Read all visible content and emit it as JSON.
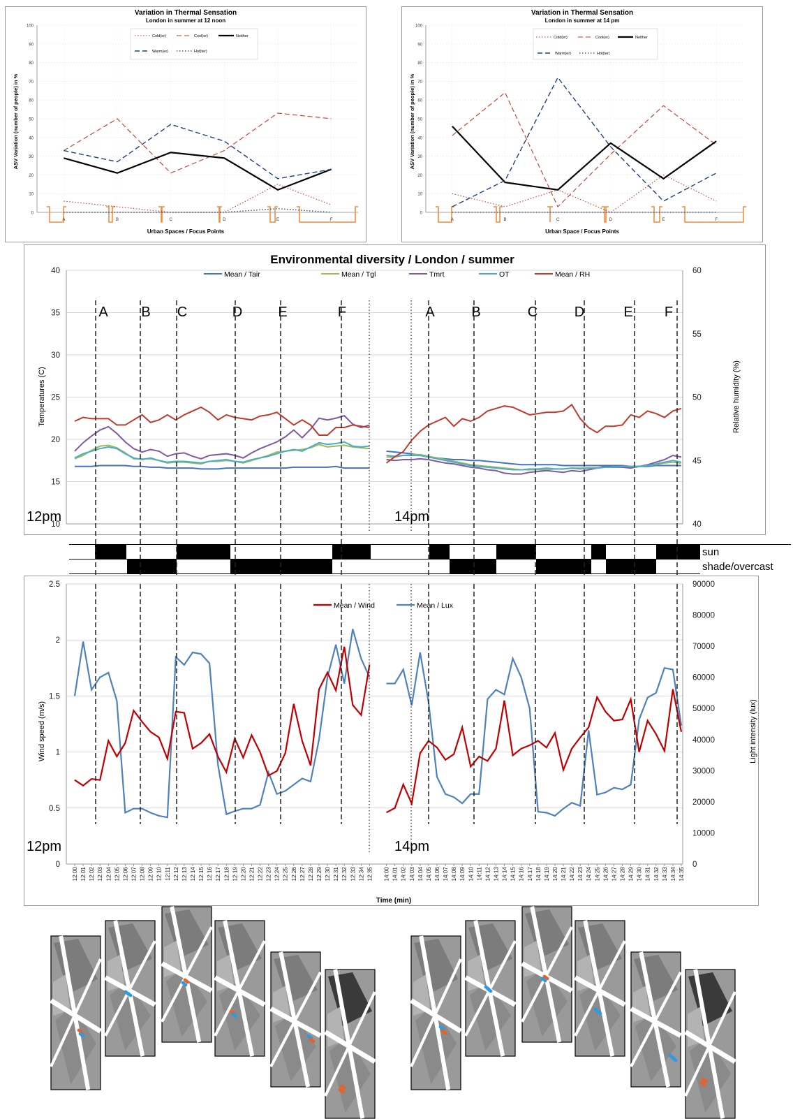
{
  "asv": [
    {
      "title": "Variation in Thermal Sensation",
      "subtitle": "London in summer at 12 noon",
      "xlabel": "Urban Spaces / Focus Points",
      "ylabel": "ASV Variation (number of people) in %",
      "legend": [
        "Cold(er)",
        "Cool(er)",
        "Neither",
        "Warm(er)",
        "Hot(ter)"
      ]
    },
    {
      "title": "Variation in Thermal Sensation",
      "subtitle": "London in summer at 14 pm",
      "xlabel": "Urban Space / Focus Points",
      "ylabel": "ASV Variation (number of people) in %",
      "legend": [
        "Cold(er)",
        "Cool(er)",
        "Neither",
        "Warm(er)",
        "Hot(ter)"
      ]
    }
  ],
  "env_title": "Environmental diversity / London / summer",
  "temp_ylabel": "Temperatures (C)",
  "rh_ylabel": "Relative humidity (%)",
  "temp_legend": [
    "Mean / Tair",
    "Mean / Tgl",
    "Tmrt",
    "OT",
    "Mean / RH"
  ],
  "wind_ylabel": "Wind speed (m/s)",
  "lux_ylabel": "Light intensity (lux)",
  "wind_legend": [
    "Mean / Wind",
    "Mean / Lux"
  ],
  "time_label": "Time (min)",
  "time_12": "12pm",
  "time_14": "14pm",
  "sun_label": "sun",
  "shade_label": "shade/overcast",
  "colors": {
    "tair": "#4472c4",
    "tgl": "#9bbb59",
    "tmrt": "#7f5aa0",
    "ot": "#4bacc6",
    "rh": "#c0392b",
    "wind": "#c00000",
    "lux": "#4f81bd",
    "asv_red": "#c0392b",
    "asv_blue": "#1f3f7a",
    "bracket": "#f28c3a"
  },
  "chart_data": [
    {
      "type": "line",
      "title": "Variation in Thermal Sensation",
      "subtitle": "London in summer at 12 noon",
      "xlabel": "Urban Spaces / Focus Points",
      "ylabel": "ASV Variation (number of people) in %",
      "categories": [
        "A",
        "B",
        "C",
        "D",
        "E",
        "F"
      ],
      "ylim": [
        0,
        100
      ],
      "yticks": [
        0,
        10,
        20,
        30,
        40,
        50,
        60,
        70,
        80,
        90,
        100
      ],
      "series": [
        {
          "name": "Cold(er)",
          "values": [
            6,
            3,
            0,
            0,
            15,
            4
          ]
        },
        {
          "name": "Cool(er)",
          "values": [
            33,
            50,
            21,
            33,
            53,
            50
          ]
        },
        {
          "name": "Neither",
          "values": [
            29,
            21,
            32,
            29,
            12,
            23
          ]
        },
        {
          "name": "Warm(er)",
          "values": [
            33,
            27,
            47,
            38,
            18,
            23
          ]
        },
        {
          "name": "Hot(ter)",
          "values": [
            0,
            0,
            0,
            0,
            2,
            0
          ]
        }
      ]
    },
    {
      "type": "line",
      "title": "Variation in Thermal Sensation",
      "subtitle": "London in summer at 14 pm",
      "xlabel": "Urban Space / Focus Points",
      "ylabel": "ASV Variation (number of people) in %",
      "categories": [
        "A",
        "B",
        "C",
        "D",
        "E",
        "F"
      ],
      "ylim": [
        0,
        100
      ],
      "yticks": [
        0,
        10,
        20,
        30,
        40,
        50,
        60,
        70,
        80,
        90,
        100
      ],
      "series": [
        {
          "name": "Cold(er)",
          "values": [
            10,
            3,
            12,
            0,
            20,
            6
          ]
        },
        {
          "name": "Cool(er)",
          "values": [
            41,
            64,
            3,
            31,
            57,
            36
          ]
        },
        {
          "name": "Neither",
          "values": [
            46,
            16,
            12,
            37,
            18,
            38
          ]
        },
        {
          "name": "Warm(er)",
          "values": [
            3,
            17,
            72,
            35,
            6,
            21
          ]
        },
        {
          "name": "Hot(ter)",
          "values": [
            0,
            0,
            0,
            0,
            0,
            0
          ]
        }
      ]
    },
    {
      "type": "line",
      "title": "Environmental diversity / London / summer",
      "ylabel": "Temperatures (C)",
      "y2label": "Relative humidity (%)",
      "ylim": [
        10,
        40
      ],
      "yticks": [
        10,
        15,
        20,
        25,
        30,
        35,
        40
      ],
      "y2lim": [
        40,
        60
      ],
      "y2ticks": [
        40,
        45,
        50,
        55,
        60
      ],
      "zone_labels": [
        "A",
        "B",
        "C",
        "D",
        "E",
        "F"
      ],
      "series": [
        {
          "name": "Mean / Tair",
          "block12": [
            16.8,
            16.8,
            16.8,
            16.9,
            16.9,
            16.9,
            16.9,
            16.8,
            16.8,
            16.7,
            16.7,
            16.6,
            16.6,
            16.6,
            16.6,
            16.5,
            16.5,
            16.5,
            16.6,
            16.6,
            16.6,
            16.6,
            16.6,
            16.6,
            16.6,
            16.6,
            16.7,
            16.7,
            16.7,
            16.7,
            16.7,
            16.8,
            16.6,
            16.6,
            16.6,
            16.6
          ],
          "block14": [
            18.6,
            18.5,
            18.4,
            18.3,
            18.1,
            17.9,
            17.8,
            17.7,
            17.6,
            17.6,
            17.5,
            17.5,
            17.4,
            17.3,
            17.2,
            17.1,
            17,
            17,
            17,
            17,
            17,
            16.9,
            16.9,
            16.9,
            16.9,
            16.9,
            16.9,
            16.9,
            16.9,
            16.8,
            16.8,
            16.8,
            16.9,
            16.9,
            16.9,
            16.9
          ]
        },
        {
          "name": "Mean / Tgl",
          "block12": [
            17.7,
            18.1,
            18.7,
            19.2,
            19.3,
            19,
            18.4,
            17.7,
            17.7,
            17.7,
            17.5,
            17.2,
            17.3,
            17.3,
            17.2,
            17.1,
            17.4,
            17.4,
            17.5,
            17.4,
            17.2,
            17.5,
            17.8,
            18.1,
            18.5,
            18.6,
            18.7,
            18.8,
            19,
            19.4,
            19.1,
            19.2,
            19.3,
            19.1,
            19,
            18.9
          ],
          "block14": [
            17.9,
            17.9,
            18.1,
            18.2,
            18.2,
            18,
            17.8,
            17.6,
            17.4,
            17.2,
            17,
            16.9,
            16.8,
            16.7,
            16.6,
            16.5,
            16.4,
            16.4,
            16.4,
            16.4,
            16.5,
            16.5,
            16.6,
            16.6,
            16.6,
            16.6,
            16.7,
            16.7,
            16.8,
            16.8,
            16.8,
            16.9,
            17,
            17.2,
            17.3,
            17.2
          ]
        },
        {
          "name": "Tmrt",
          "block12": [
            18.6,
            19.6,
            20.4,
            21.1,
            21.5,
            20.7,
            19.7,
            18.9,
            18.5,
            18.8,
            18.6,
            18,
            18.3,
            18.4,
            18,
            17.7,
            18.1,
            18.2,
            18.3,
            18.1,
            17.8,
            18.4,
            18.9,
            19.3,
            19.7,
            20.3,
            21.1,
            20.2,
            21.2,
            22.5,
            22.3,
            22.5,
            22.8,
            21.8,
            21.4,
            21.7
          ],
          "block14": [
            17.6,
            17.5,
            17.6,
            17.6,
            17.7,
            17.6,
            17.4,
            17.2,
            17.1,
            16.9,
            16.7,
            16.6,
            16.4,
            16.3,
            16,
            15.9,
            15.9,
            16.1,
            16.2,
            16.3,
            16.2,
            16.1,
            16.3,
            16.2,
            16.4,
            16.6,
            16.8,
            16.7,
            16.7,
            16.6,
            16.8,
            17,
            17.3,
            17.6,
            18.1,
            17.9
          ]
        },
        {
          "name": "OT",
          "block12": [
            17.8,
            18.3,
            18.6,
            18.9,
            19.1,
            18.9,
            18.3,
            17.8,
            17.6,
            17.8,
            17.5,
            17.3,
            17.4,
            17.4,
            17.3,
            17.2,
            17.4,
            17.5,
            17.6,
            17.4,
            17.3,
            17.6,
            17.8,
            18,
            18.3,
            18.6,
            18.8,
            18.6,
            19.1,
            19.6,
            19.4,
            19.5,
            19.7,
            19.2,
            19.1,
            19.2
          ],
          "block14": [
            18.1,
            18,
            18.1,
            18.1,
            18.1,
            17.9,
            17.7,
            17.5,
            17.3,
            17.1,
            16.9,
            16.8,
            16.7,
            16.6,
            16.5,
            16.4,
            16.4,
            16.5,
            16.5,
            16.6,
            16.5,
            16.5,
            16.6,
            16.5,
            16.6,
            16.6,
            16.7,
            16.7,
            16.8,
            16.8,
            16.8,
            16.9,
            17.1,
            17.3,
            17.5,
            17.3
          ]
        },
        {
          "name": "Mean / RH",
          "block12": [
            48.1,
            48.4,
            48.3,
            48.3,
            48.3,
            47.8,
            47.8,
            48.2,
            48.6,
            48,
            48.2,
            48.6,
            48.2,
            48.6,
            48.9,
            49.2,
            48.8,
            48.2,
            48.6,
            48.4,
            48.3,
            48.2,
            48.5,
            48.6,
            48.8,
            48.3,
            47.8,
            48.2,
            47.8,
            47,
            47,
            47.6,
            47.6,
            47.8,
            47.7,
            47.6
          ],
          "block14": [
            44.8,
            45.3,
            45.7,
            46.6,
            47.3,
            47.8,
            48.1,
            48.4,
            47.7,
            48.3,
            48.1,
            48.4,
            48.9,
            49.1,
            49.3,
            49.2,
            48.9,
            48.6,
            48.7,
            48.8,
            48.8,
            48.9,
            49.4,
            48.3,
            47.6,
            47.2,
            47.7,
            47.7,
            47.8,
            48.6,
            48.4,
            48.9,
            48.7,
            48.4,
            48.9,
            49.1
          ]
        }
      ]
    },
    {
      "type": "line",
      "xlabel": "Time (min)",
      "ylabel": "Wind speed (m/s)",
      "y2label": "Light intensity (lux)",
      "ylim": [
        0,
        2.5
      ],
      "yticks": [
        0,
        0.5,
        1,
        1.5,
        2,
        2.5
      ],
      "y2lim": [
        0,
        90000
      ],
      "y2ticks": [
        0,
        10000,
        20000,
        30000,
        40000,
        50000,
        60000,
        70000,
        80000,
        90000
      ],
      "x": [
        "12:00",
        "12:01",
        "12:02",
        "12:03",
        "12:04",
        "12:05",
        "12:06",
        "12:07",
        "12:08",
        "12:09",
        "12:10",
        "12:11",
        "12:12",
        "12:13",
        "12:14",
        "12:15",
        "12:16",
        "12:17",
        "12:18",
        "12:19",
        "12:20",
        "12:21",
        "12:22",
        "12:23",
        "12:24",
        "12:25",
        "12:26",
        "12:27",
        "12:28",
        "12:29",
        "12:30",
        "12:31",
        "12:32",
        "12:33",
        "12:34",
        "12:35",
        "14:00",
        "14:01",
        "14:02",
        "14:03",
        "14:04",
        "14:05",
        "14:06",
        "14:07",
        "14:08",
        "14:09",
        "14:10",
        "14:11",
        "14:12",
        "14:13",
        "14:14",
        "14:15",
        "14:16",
        "14:17",
        "14:18",
        "14:19",
        "14:20",
        "14:21",
        "14:22",
        "14:23",
        "14:24",
        "14:25",
        "14:26",
        "14:27",
        "14:28",
        "14:29",
        "14:30",
        "14:31",
        "14:32",
        "14:33",
        "14:34",
        "14:35"
      ],
      "series": [
        {
          "name": "Mean / Wind",
          "values": [
            0.75,
            0.7,
            0.76,
            0.75,
            1.1,
            0.96,
            1.08,
            1.37,
            1.27,
            1.18,
            1.13,
            0.94,
            1.36,
            1.35,
            1.03,
            1.08,
            1.16,
            0.96,
            0.82,
            1.12,
            0.95,
            1.15,
            1,
            0.79,
            0.83,
            0.99,
            1.43,
            1.1,
            0.88,
            1.56,
            1.71,
            1.55,
            1.94,
            1.42,
            1.33,
            1.78,
            0.46,
            0.5,
            0.71,
            0.54,
            0.99,
            1.1,
            1.04,
            0.93,
            0.98,
            1.22,
            0.87,
            0.96,
            0.92,
            1.03,
            1.46,
            0.97,
            1.03,
            1.06,
            1.1,
            1.04,
            1.17,
            0.84,
            1.03,
            1.13,
            1.22,
            1.49,
            1.36,
            1.28,
            1.29,
            1.47,
            1,
            1.28,
            1.16,
            1.01,
            1.56,
            1.18
          ]
        },
        {
          "name": "Mean / Lux",
          "values": [
            54000,
            71500,
            56000,
            60000,
            61500,
            52500,
            16500,
            17800,
            17800,
            16500,
            15500,
            15000,
            66500,
            64000,
            68000,
            67500,
            64500,
            32000,
            16000,
            17000,
            17800,
            17800,
            19000,
            29500,
            22500,
            23500,
            25500,
            27500,
            26500,
            40000,
            60000,
            70500,
            58000,
            75500,
            66000,
            60000,
            58000,
            58000,
            62500,
            51000,
            68000,
            52000,
            28000,
            22500,
            21500,
            19500,
            22500,
            22500,
            53000,
            56000,
            54500,
            66000,
            60000,
            50000,
            16800,
            16500,
            15500,
            17800,
            19700,
            18700,
            43000,
            22300,
            23000,
            24500,
            24000,
            25500,
            46500,
            53500,
            55000,
            63000,
            62500,
            44500
          ]
        }
      ]
    }
  ],
  "maps_note": ""
}
